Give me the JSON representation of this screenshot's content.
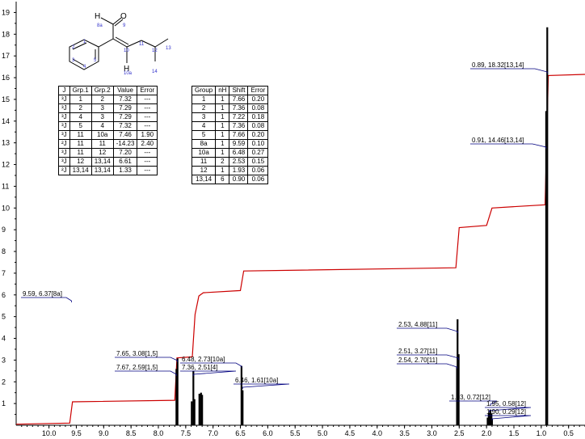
{
  "chart_data": {
    "type": "nmr-spectrum",
    "title": "",
    "xlabel": "",
    "ylabel": "",
    "xlim": [
      10.6,
      0.2
    ],
    "ylim": [
      0,
      19.5
    ],
    "x_ticks": [
      "10.0",
      "9.5",
      "9.0",
      "8.5",
      "8.0",
      "7.5",
      "7.0",
      "6.5",
      "6.0",
      "5.5",
      "5.0",
      "4.5",
      "4.0",
      "3.5",
      "3.0",
      "2.5",
      "2.0",
      "1.5",
      "1.0",
      "0.5"
    ],
    "y_ticks": [
      "1",
      "2",
      "3",
      "4",
      "5",
      "6",
      "7",
      "8",
      "9",
      "10",
      "11",
      "12",
      "13",
      "14",
      "15",
      "16",
      "17",
      "18",
      "19"
    ],
    "peaks": [
      {
        "ppm": 7.67,
        "height": 2.59
      },
      {
        "ppm": 7.65,
        "height": 3.08
      },
      {
        "ppm": 7.39,
        "height": 1.1
      },
      {
        "ppm": 7.36,
        "height": 2.51
      },
      {
        "ppm": 7.34,
        "height": 1.2
      },
      {
        "ppm": 7.25,
        "height": 1.45
      },
      {
        "ppm": 7.22,
        "height": 1.5
      },
      {
        "ppm": 7.2,
        "height": 1.4
      },
      {
        "ppm": 6.48,
        "height": 2.73
      },
      {
        "ppm": 6.46,
        "height": 1.61
      },
      {
        "ppm": 2.54,
        "height": 2.7
      },
      {
        "ppm": 2.53,
        "height": 4.88
      },
      {
        "ppm": 2.51,
        "height": 3.27
      },
      {
        "ppm": 1.98,
        "height": 0.35
      },
      {
        "ppm": 1.96,
        "height": 0.55
      },
      {
        "ppm": 1.95,
        "height": 0.58
      },
      {
        "ppm": 1.93,
        "height": 0.72
      },
      {
        "ppm": 1.91,
        "height": 0.55
      },
      {
        "ppm": 1.9,
        "height": 0.29
      },
      {
        "ppm": 0.91,
        "height": 14.46
      },
      {
        "ppm": 0.89,
        "height": 18.32
      }
    ],
    "integral_curve": [
      [
        10.6,
        0.05
      ],
      [
        9.62,
        0.1
      ],
      [
        9.57,
        1.08
      ],
      [
        7.7,
        1.15
      ],
      [
        7.66,
        3.1
      ],
      [
        7.38,
        3.15
      ],
      [
        7.33,
        5.1
      ],
      [
        7.26,
        5.95
      ],
      [
        7.18,
        6.1
      ],
      [
        6.5,
        6.2
      ],
      [
        6.44,
        7.1
      ],
      [
        2.56,
        7.25
      ],
      [
        2.5,
        9.1
      ],
      [
        2.0,
        9.2
      ],
      [
        1.9,
        10.0
      ],
      [
        0.93,
        10.15
      ],
      [
        0.87,
        16.1
      ],
      [
        0.2,
        16.15
      ]
    ],
    "annotations": [
      {
        "text": "9.59, 6.37[8a]",
        "ppm": 9.59
      },
      {
        "text": "7.65, 3.08[1,5]",
        "ppm": 7.65
      },
      {
        "text": "7.67, 2.59[1,5]",
        "ppm": 7.67
      },
      {
        "text": "6.48, 2.73[10a]",
        "ppm": 6.48
      },
      {
        "text": "7.36, 2.51[4]",
        "ppm": 7.36
      },
      {
        "text": "6.46, 1.61[10a]",
        "ppm": 6.46
      },
      {
        "text": "2.53, 4.88[11]",
        "ppm": 2.53
      },
      {
        "text": "2.51, 3.27[11]",
        "ppm": 2.51
      },
      {
        "text": "2.54, 2.70[11]",
        "ppm": 2.54
      },
      {
        "text": "1.93, 0.72[12]",
        "ppm": 1.93
      },
      {
        "text": "1.95, 0.58[12]",
        "ppm": 1.95
      },
      {
        "text": "1.90, 0.29[12]",
        "ppm": 1.9
      },
      {
        "text": "0.89, 18.32[13,14]",
        "ppm": 0.89
      },
      {
        "text": "0.91, 14.46[13,14]",
        "ppm": 0.91
      }
    ],
    "colors": {
      "spectrum": "#000000",
      "integral": "#cc0000",
      "annotation": "#000080",
      "atom_labels": "#3333cc"
    }
  },
  "molecule": {
    "atoms": {
      "H": "H",
      "O": "O",
      "H10a": "H"
    },
    "atom_numbers": {
      "n8a": "8a",
      "n9": "9",
      "n10": "10",
      "n11": "11",
      "n12": "12",
      "n13": "13",
      "n14": "14",
      "n10a": "10a",
      "n1": "1",
      "n2": "2",
      "n3": "3",
      "n4": "4",
      "n5": "5"
    }
  },
  "coupling_table": {
    "headers": [
      "J",
      "Grp.1",
      "Grp.2",
      "Value",
      "Error"
    ],
    "rows": [
      [
        "³J",
        "1",
        "2",
        "7.32",
        "---"
      ],
      [
        "³J",
        "2",
        "3",
        "7.29",
        "---"
      ],
      [
        "³J",
        "4",
        "3",
        "7.29",
        "---"
      ],
      [
        "³J",
        "5",
        "4",
        "7.32",
        "---"
      ],
      [
        "³J",
        "11",
        "10a",
        "7.46",
        "1.90"
      ],
      [
        "²J",
        "11",
        "11",
        "-14.23",
        "2.40"
      ],
      [
        "³J",
        "11",
        "12",
        "7.20",
        "---"
      ],
      [
        "³J",
        "12",
        "13,14",
        "6.61",
        "---"
      ],
      [
        "²J",
        "13,14",
        "13,14",
        "1.33",
        "---"
      ]
    ]
  },
  "shift_table": {
    "headers": [
      "Group",
      "nH",
      "Shift",
      "Error"
    ],
    "rows": [
      [
        "1",
        "1",
        "7.66",
        "0.20"
      ],
      [
        "2",
        "1",
        "7.36",
        "0.08"
      ],
      [
        "3",
        "1",
        "7.22",
        "0.18"
      ],
      [
        "4",
        "1",
        "7.36",
        "0.08"
      ],
      [
        "5",
        "1",
        "7.66",
        "0.20"
      ],
      [
        "8a",
        "1",
        "9.59",
        "0.10"
      ],
      [
        "10a",
        "1",
        "6.48",
        "0.27"
      ],
      [
        "11",
        "2",
        "2.53",
        "0.15"
      ],
      [
        "12",
        "1",
        "1.93",
        "0.06"
      ],
      [
        "13,14",
        "6",
        "0.90",
        "0.06"
      ]
    ]
  }
}
